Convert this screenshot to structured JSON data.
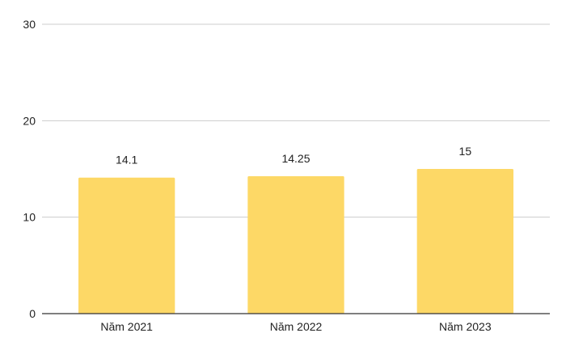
{
  "chart_data": {
    "type": "bar",
    "categories": [
      "Năm 2021",
      "Năm 2022",
      "Năm 2023"
    ],
    "values": [
      14.1,
      14.25,
      15
    ],
    "data_labels": [
      "14.1",
      "14.25",
      "15"
    ],
    "yticks": [
      "0",
      "10",
      "20",
      "30"
    ],
    "ylim": [
      0,
      30
    ],
    "title": "",
    "xlabel": "",
    "ylabel": "",
    "grid": true,
    "legend": "none",
    "bar_color": "#fdd866"
  }
}
